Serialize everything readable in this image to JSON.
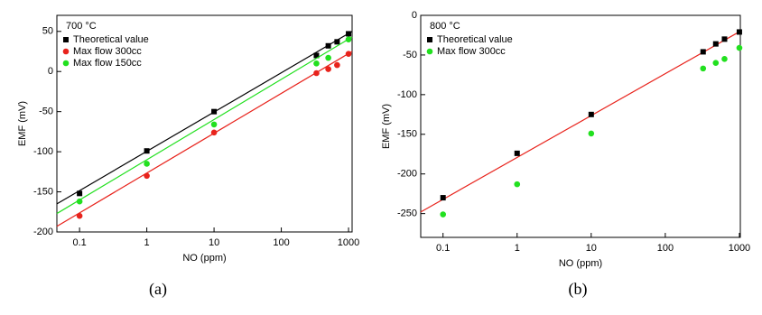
{
  "chart_data": [
    {
      "type": "scatter",
      "annotation": "700 °C",
      "caption": "(a)",
      "x_label": "NO (ppm)",
      "y_label": "EMF (mV)",
      "xscale": "log",
      "xlim": [
        0.046,
        1130
      ],
      "xticks": [
        0.1,
        1,
        10,
        100,
        1000
      ],
      "ylim": [
        -200,
        70
      ],
      "yticks": [
        -200,
        -150,
        -100,
        -50,
        0,
        50
      ],
      "legend": "top-left",
      "series": [
        {
          "name": "Theoretical value",
          "color": "#000000",
          "marker": "square",
          "x": [
            0.1,
            1,
            10,
            333,
            500,
            676,
            1000
          ],
          "values": [
            -152,
            -99,
            -50,
            20,
            32,
            37,
            47
          ],
          "fit": {
            "x": [
              0.046,
              1130
            ],
            "values": [
              -165,
              50
            ]
          }
        },
        {
          "name": "Max flow 300cc",
          "color": "#e8231c",
          "marker": "circle",
          "x": [
            0.1,
            1,
            10,
            333,
            500,
            676,
            1000
          ],
          "values": [
            -180,
            -130,
            -76,
            -2,
            3,
            8,
            22
          ],
          "fit": {
            "x": [
              0.046,
              1130
            ],
            "values": [
              -193,
              25
            ]
          }
        },
        {
          "name": "Max flow 150cc",
          "color": "#22e01f",
          "marker": "circle",
          "x": [
            0.1,
            1,
            10,
            333,
            500,
            1000
          ],
          "values": [
            -162,
            -115,
            -66,
            10,
            17,
            40
          ],
          "fit": {
            "x": [
              0.046,
              1130
            ],
            "values": [
              -177,
              43
            ]
          }
        }
      ]
    },
    {
      "type": "scatter",
      "annotation": "800 °C",
      "caption": "(b)",
      "x_label": "NO (ppm)",
      "y_label": "EMF (mV)",
      "xscale": "log",
      "xlim": [
        0.05,
        1030
      ],
      "xticks": [
        0.1,
        1,
        10,
        100,
        1000
      ],
      "ylim": [
        -280,
        0
      ],
      "yticks": [
        -250,
        -200,
        -150,
        -100,
        -50,
        0
      ],
      "legend": "top-left",
      "series": [
        {
          "name": "Theoretical value",
          "color": "#000000",
          "marker": "square",
          "x": [
            0.1,
            1,
            10,
            324,
            480,
            630,
            1000
          ],
          "values": [
            -230,
            -174,
            -125,
            -46,
            -36,
            -30,
            -21
          ],
          "fit": {
            "color": "#e8231c",
            "x": [
              0.05,
              1030
            ],
            "values": [
              -248,
              -20
            ]
          }
        },
        {
          "name": "Max flow 300cc",
          "color": "#22e01f",
          "marker": "circle",
          "x": [
            0.1,
            1,
            10,
            324,
            480,
            630,
            1000
          ],
          "values": [
            -251,
            -213,
            -149,
            -67,
            -60,
            -55,
            -41
          ]
        }
      ]
    }
  ]
}
